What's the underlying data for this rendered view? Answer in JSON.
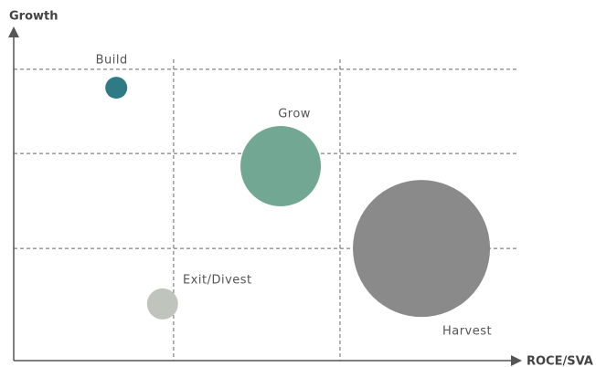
{
  "chart_data": {
    "type": "bubble",
    "x_label": "ROCE/SVA",
    "y_label": "Growth",
    "xlim": [
      0,
      100
    ],
    "ylim": [
      0,
      100
    ],
    "xticks": [
      31.8,
      64.9
    ],
    "yticks": [
      34.6,
      63.9,
      89.9
    ],
    "grid": true,
    "points": [
      {
        "name": "Build",
        "x": 20.4,
        "y": 84.2,
        "size": 12,
        "color": "#2e7b86"
      },
      {
        "name": "Grow",
        "x": 53.1,
        "y": 60,
        "size": 44,
        "color": "#72a893"
      },
      {
        "name": "Harvest",
        "x": 81.1,
        "y": 34.6,
        "size": 75,
        "color": "#8a8a8a"
      },
      {
        "name": "Exit/Divest",
        "x": 29.6,
        "y": 17.5,
        "size": 17,
        "color": "#bfc5bc"
      }
    ]
  }
}
